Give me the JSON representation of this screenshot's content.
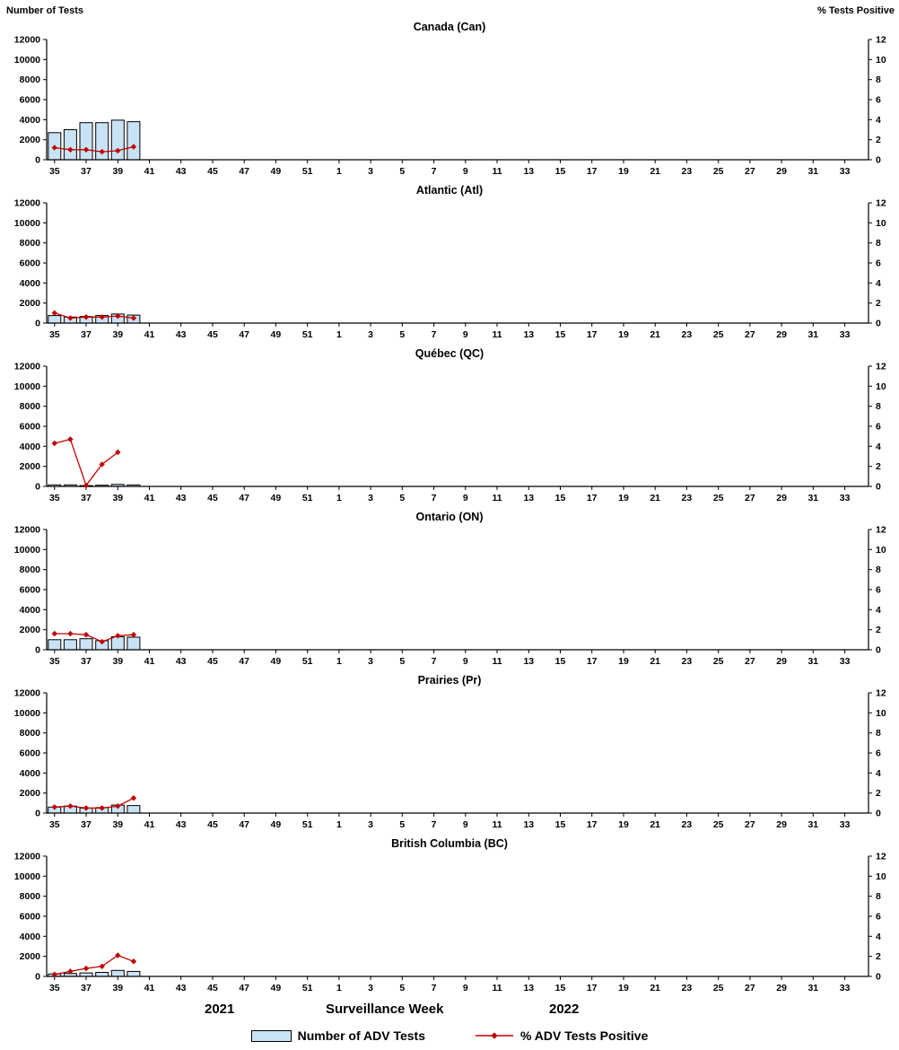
{
  "header": {
    "left_axis_title": "Number of Tests",
    "right_axis_title": "%  Tests Positive"
  },
  "footer": {
    "year_left": "2021",
    "axis_title": "Surveillance Week",
    "year_right": "2022"
  },
  "legend": {
    "bars_label": "Number of ADV Tests",
    "line_label": "% ADV Tests Positive"
  },
  "colors": {
    "bar_fill": "#C9E3F5",
    "bar_stroke": "#000000",
    "line_color": "#C00000",
    "axis_color": "#000000"
  },
  "chart_data": {
    "type": "bar",
    "note": "six stacked region panels; bars = weekly number of ADV tests (left axis), red diamond line = % ADV tests positive (right axis)",
    "weeks_start": 35,
    "n_weeks": 52,
    "left_ylim": [
      0,
      12000
    ],
    "right_ylim": [
      0,
      12
    ],
    "left_yticks": [
      0,
      2000,
      4000,
      6000,
      8000,
      10000,
      12000
    ],
    "right_yticks": [
      0,
      2,
      4,
      6,
      8,
      10,
      12
    ],
    "x_tick_labels": [
      "35",
      "37",
      "39",
      "41",
      "43",
      "45",
      "47",
      "49",
      "51",
      "1",
      "3",
      "5",
      "7",
      "9",
      "11",
      "13",
      "15",
      "17",
      "19",
      "21",
      "23",
      "25",
      "27",
      "29",
      "31",
      "33"
    ],
    "panels": [
      {
        "region": "Canada (Can)",
        "weeks": [
          35,
          36,
          37,
          38,
          39,
          40
        ],
        "tests": [
          2700,
          3000,
          3700,
          3700,
          3950,
          3800
        ],
        "pct_positive": [
          1.2,
          1.0,
          1.0,
          0.8,
          0.9,
          1.3
        ]
      },
      {
        "region": "Atlantic (Atl)",
        "weeks": [
          35,
          36,
          37,
          38,
          39,
          40
        ],
        "tests": [
          750,
          600,
          650,
          750,
          900,
          800
        ],
        "pct_positive": [
          1.0,
          0.5,
          0.6,
          0.6,
          0.7,
          0.5
        ]
      },
      {
        "region": "Québec (QC)",
        "weeks": [
          35,
          36,
          37,
          38,
          39,
          40
        ],
        "tests": [
          150,
          150,
          80,
          120,
          200,
          150
        ],
        "pct_positive": [
          4.3,
          4.7,
          0.1,
          2.2,
          3.4,
          null
        ]
      },
      {
        "region": "Ontario (ON)",
        "weeks": [
          35,
          36,
          37,
          38,
          39,
          40
        ],
        "tests": [
          1000,
          1000,
          1100,
          900,
          1300,
          1250
        ],
        "pct_positive": [
          1.6,
          1.6,
          1.5,
          0.8,
          1.4,
          1.5
        ]
      },
      {
        "region": "Prairies (Pr)",
        "weeks": [
          35,
          36,
          37,
          38,
          39,
          40
        ],
        "tests": [
          600,
          700,
          500,
          550,
          800,
          750
        ],
        "pct_positive": [
          0.6,
          0.7,
          0.5,
          0.5,
          0.7,
          1.5
        ]
      },
      {
        "region": "British Columbia (BC)",
        "weeks": [
          35,
          36,
          37,
          38,
          39,
          40
        ],
        "tests": [
          250,
          300,
          350,
          400,
          600,
          500
        ],
        "pct_positive": [
          0.2,
          0.5,
          0.8,
          1.0,
          2.1,
          1.5
        ]
      }
    ]
  }
}
